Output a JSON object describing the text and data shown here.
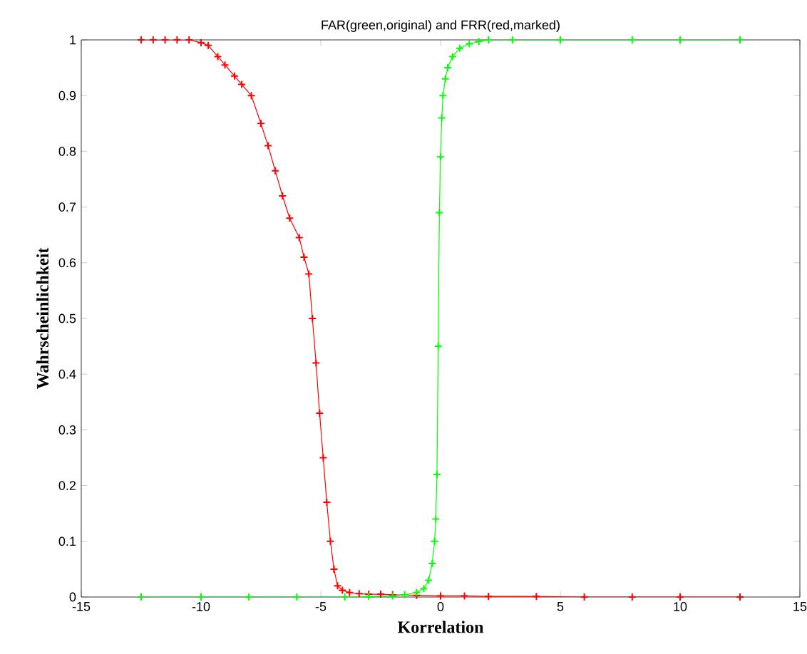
{
  "chart_data": {
    "type": "line",
    "title": "FAR(green,original) and FRR(red,marked)",
    "xlabel": "Korrelation",
    "ylabel": "Wahrscheinlichkeit",
    "xlim": [
      -15,
      15
    ],
    "ylim": [
      0,
      1
    ],
    "xticks": [
      -15,
      -10,
      -5,
      0,
      5,
      10,
      15
    ],
    "yticks": [
      0,
      0.1,
      0.2,
      0.3,
      0.4,
      0.5,
      0.6,
      0.7,
      0.8,
      0.9,
      1
    ],
    "grid": false,
    "marker": "cross",
    "line_style": "solid",
    "series": [
      {
        "color": "#ff0000",
        "x": [
          -12.5,
          -12,
          -11.5,
          -11,
          -10.5,
          -10,
          -9.7,
          -9.3,
          -9,
          -8.6,
          -8.3,
          -7.9,
          -7.5,
          -7.2,
          -6.9,
          -6.6,
          -6.3,
          -5.9,
          -5.7,
          -5.5,
          -5.35,
          -5.2,
          -5.05,
          -4.9,
          -4.75,
          -4.6,
          -4.45,
          -4.3,
          -4.1,
          -3.8,
          -3.4,
          -3,
          -2.5,
          -2,
          -1,
          0,
          1,
          2,
          4,
          6,
          8,
          10,
          12.5
        ],
        "values": [
          1,
          1,
          1,
          1,
          1,
          0.995,
          0.99,
          0.97,
          0.955,
          0.935,
          0.92,
          0.9,
          0.85,
          0.81,
          0.765,
          0.72,
          0.68,
          0.645,
          0.61,
          0.58,
          0.5,
          0.42,
          0.33,
          0.25,
          0.17,
          0.1,
          0.05,
          0.02,
          0.012,
          0.008,
          0.006,
          0.005,
          0.005,
          0.004,
          0.003,
          0.002,
          0.002,
          0.001,
          0.001,
          0,
          0,
          0,
          0
        ]
      },
      {
        "color": "#00ff00",
        "x": [
          -12.5,
          -10,
          -8,
          -6,
          -4,
          -3,
          -2,
          -1.5,
          -1,
          -0.7,
          -0.5,
          -0.35,
          -0.25,
          -0.2,
          -0.15,
          -0.1,
          -0.05,
          0,
          0.05,
          0.1,
          0.2,
          0.3,
          0.5,
          0.8,
          1.2,
          1.6,
          2,
          3,
          5,
          8,
          10,
          12.5
        ],
        "values": [
          0,
          0,
          0,
          0,
          0,
          0.001,
          0.002,
          0.004,
          0.008,
          0.015,
          0.03,
          0.06,
          0.1,
          0.14,
          0.22,
          0.45,
          0.69,
          0.79,
          0.86,
          0.9,
          0.93,
          0.95,
          0.97,
          0.985,
          0.993,
          0.997,
          1,
          1,
          1,
          1,
          1,
          1
        ]
      }
    ]
  }
}
